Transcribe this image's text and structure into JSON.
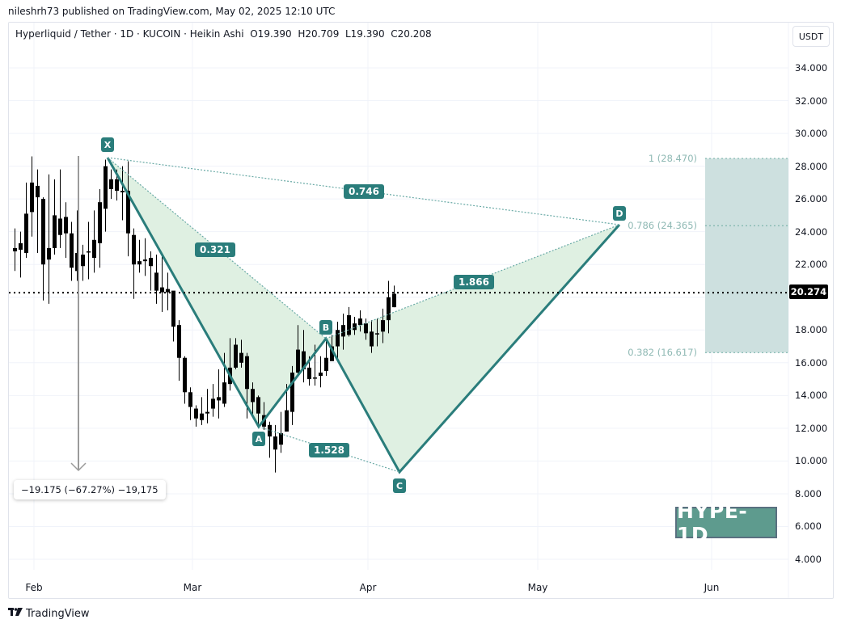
{
  "header": {
    "publisher": "nileshrh73 published on TradingView.com, May 02, 2025 12:10 UTC"
  },
  "legend": {
    "symbol": "Hyperliquid / Tether · 1D · KUCOIN · Heikin Ashi",
    "open": "O19.390",
    "high": "H20.709",
    "low": "L19.390",
    "close": "C20.208"
  },
  "axis": {
    "currency": "USDT",
    "current_price": "20.274",
    "y_ticks": [
      "34.000",
      "32.000",
      "30.000",
      "28.000",
      "26.000",
      "24.000",
      "22.000",
      "20.000",
      "18.000",
      "16.000",
      "14.000",
      "12.000",
      "10.000",
      "8.000",
      "6.000",
      "4.000"
    ],
    "x_ticks": [
      "Feb",
      "Mar",
      "Apr",
      "May",
      "Jun"
    ]
  },
  "pattern": {
    "name": "Harmonic (Bat/Cypher-style XABCD)",
    "points": [
      {
        "label": "X",
        "price": 28.47
      },
      {
        "label": "A",
        "price": 12.1
      },
      {
        "label": "B",
        "price": 17.5
      },
      {
        "label": "C",
        "price": 9.3
      },
      {
        "label": "D",
        "price": 24.365
      }
    ],
    "ratios": {
      "XB": "0.321",
      "XD": "0.746",
      "AC": "1.528",
      "BD": "1.866"
    }
  },
  "fib_levels": [
    {
      "label": "1 (28.470)",
      "price": 28.47
    },
    {
      "label": "0.786 (24.365)",
      "price": 24.365
    },
    {
      "label": "0.382 (16.617)",
      "price": 16.617
    }
  ],
  "measure": {
    "text": "−19.175 (−67.27%) −19,175"
  },
  "watermark": "HYPE-1D",
  "footer": {
    "brand_mark": "TV",
    "brand": "TradingView"
  },
  "colors": {
    "pattern_line": "#2a7d7b",
    "pattern_fill": "#dff0e2",
    "target_zone": "#cde0df",
    "candle": "#000000",
    "watermark_bg": "#5e9b8e"
  },
  "chart_data": {
    "type": "candlestick",
    "title": "Hyperliquid / Tether · 1D · KUCOIN · Heikin Ashi",
    "xlabel": "",
    "ylabel": "USDT",
    "ylim": [
      3,
      35
    ],
    "x_ticks": [
      "Feb",
      "Mar",
      "Apr",
      "May",
      "Jun"
    ],
    "last": {
      "open": 19.39,
      "high": 20.709,
      "low": 19.39,
      "close": 20.208,
      "price_line": 20.274
    },
    "candles": [
      [
        23.0,
        22.8,
        24.2,
        21.6
      ],
      [
        23.3,
        22.9,
        24.0,
        21.2
      ],
      [
        22.7,
        25.1,
        27.0,
        22.4
      ],
      [
        25.2,
        27.0,
        28.6,
        23.7
      ],
      [
        26.8,
        26.1,
        27.8,
        22.7
      ],
      [
        26.0,
        22.0,
        26.1,
        19.8
      ],
      [
        22.3,
        23.0,
        27.5,
        19.6
      ],
      [
        23.0,
        25.0,
        27.2,
        22.6
      ],
      [
        24.8,
        23.8,
        27.8,
        23.0
      ],
      [
        24.9,
        23.9,
        25.8,
        22.4
      ],
      [
        23.9,
        21.8,
        24.6,
        21.0
      ],
      [
        21.6,
        22.7,
        25.3,
        21.0
      ],
      [
        22.6,
        21.9,
        23.2,
        21.0
      ],
      [
        22.8,
        22.8,
        24.6,
        21.1
      ],
      [
        22.4,
        23.5,
        25.3,
        21.5
      ],
      [
        23.3,
        25.8,
        26.6,
        21.8
      ],
      [
        25.4,
        28.0,
        28.4,
        24.0
      ],
      [
        27.2,
        26.6,
        27.8,
        26.0
      ],
      [
        27.2,
        26.5,
        27.8,
        25.9
      ],
      [
        26.4,
        26.5,
        28.0,
        24.7
      ],
      [
        26.5,
        23.9,
        28.3,
        22.5
      ],
      [
        23.8,
        22.0,
        24.2,
        19.9
      ],
      [
        22.0,
        22.2,
        23.5,
        21.5
      ],
      [
        22.2,
        22.3,
        23.6,
        21.3
      ],
      [
        22.4,
        21.9,
        22.8,
        20.4
      ],
      [
        21.5,
        20.4,
        22.6,
        19.6
      ],
      [
        20.6,
        20.3,
        22.5,
        19.1
      ],
      [
        20.3,
        20.5,
        21.5,
        19.2
      ],
      [
        20.4,
        18.2,
        20.3,
        17.3
      ],
      [
        18.3,
        16.3,
        18.6,
        14.9
      ],
      [
        16.3,
        14.2,
        16.4,
        13.5
      ],
      [
        14.2,
        13.3,
        14.5,
        12.5
      ],
      [
        13.2,
        12.6,
        13.4,
        12.1
      ],
      [
        12.5,
        12.9,
        13.9,
        12.2
      ],
      [
        12.9,
        13.0,
        14.4,
        12.3
      ],
      [
        13.2,
        13.8,
        14.7,
        12.7
      ],
      [
        13.7,
        13.9,
        15.6,
        12.6
      ],
      [
        13.5,
        14.8,
        16.6,
        13.3
      ],
      [
        14.7,
        15.7,
        17.5,
        14.3
      ],
      [
        15.7,
        17.1,
        17.5,
        15.6
      ],
      [
        16.6,
        16.0,
        17.4,
        15.7
      ],
      [
        16.4,
        14.4,
        16.6,
        12.6
      ],
      [
        14.4,
        13.6,
        14.8,
        12.7
      ],
      [
        13.9,
        12.9,
        14.0,
        12.2
      ],
      [
        12.8,
        12.1,
        13.6,
        11.9
      ],
      [
        12.2,
        11.5,
        12.4,
        10.2
      ],
      [
        11.5,
        10.7,
        12.2,
        9.3
      ],
      [
        11.0,
        11.7,
        13.0,
        10.5
      ],
      [
        11.8,
        13.1,
        14.7,
        11.8
      ],
      [
        13.0,
        15.4,
        15.8,
        12.2
      ],
      [
        15.4,
        16.8,
        18.3,
        15.2
      ],
      [
        16.7,
        15.6,
        18.0,
        14.8
      ],
      [
        15.7,
        15.0,
        16.4,
        14.6
      ],
      [
        15.1,
        15.1,
        17.1,
        14.6
      ],
      [
        15.2,
        15.4,
        16.4,
        14.5
      ],
      [
        15.5,
        16.3,
        17.3,
        15.2
      ],
      [
        16.1,
        17.0,
        17.7,
        16.1
      ],
      [
        17.0,
        18.0,
        18.5,
        16.2
      ],
      [
        17.6,
        18.3,
        19.0,
        16.8
      ],
      [
        17.7,
        18.9,
        19.4,
        17.6
      ],
      [
        18.4,
        18.0,
        18.8,
        17.7
      ],
      [
        18.7,
        18.3,
        19.2,
        17.9
      ],
      [
        18.4,
        17.8,
        18.7,
        17.4
      ],
      [
        17.9,
        17.0,
        18.6,
        16.6
      ],
      [
        17.8,
        17.8,
        18.7,
        17.0
      ],
      [
        17.9,
        18.6,
        19.3,
        17.2
      ],
      [
        18.6,
        20.0,
        21.0,
        17.8
      ],
      [
        19.39,
        20.208,
        20.709,
        19.39
      ]
    ],
    "annotations": [
      {
        "type": "harmonic",
        "points": {
          "X": 28.47,
          "A": 12.1,
          "B": 17.5,
          "C": 9.3,
          "D": 24.365
        },
        "ratios": [
          "0.321",
          "0.746",
          "1.528",
          "1.866"
        ]
      },
      {
        "type": "fib_zone",
        "levels": [
          "1 (28.470)",
          "0.786 (24.365)",
          "0.382 (16.617)"
        ]
      },
      {
        "type": "measure",
        "text": "−19.175 (−67.27%) −19,175"
      }
    ]
  }
}
